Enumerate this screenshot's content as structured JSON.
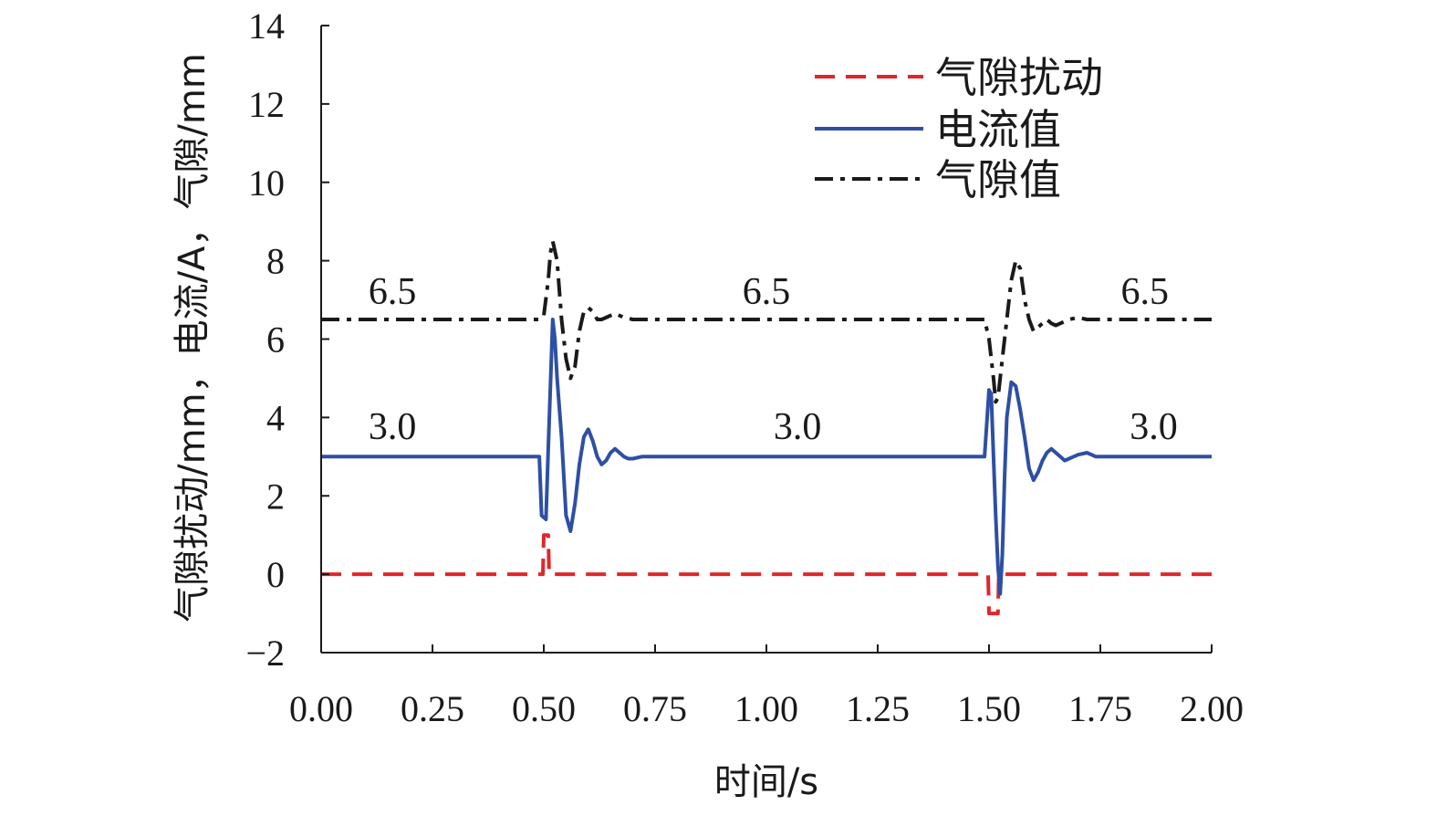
{
  "chart_data": {
    "type": "line",
    "title": "",
    "xlabel": "时间/s",
    "ylabel": "气隙扰动/mm，电流/A，气隙/mm",
    "xlim": [
      0,
      2
    ],
    "ylim": [
      -2,
      14
    ],
    "xticks": [
      "0.00",
      "0.25",
      "0.50",
      "0.75",
      "1.00",
      "1.25",
      "1.50",
      "1.75",
      "2.00"
    ],
    "yticks": [
      "−2",
      "0",
      "2",
      "4",
      "6",
      "8",
      "10",
      "12",
      "14"
    ],
    "grid": false,
    "legend_position": "top-right",
    "series": [
      {
        "name": "气隙扰动",
        "style": "dashed",
        "color": "#e0262a",
        "x": [
          0,
          0.498,
          0.5,
          0.51,
          0.512,
          1.498,
          1.5,
          1.52,
          1.522,
          2.0
        ],
        "y": [
          0,
          0,
          1,
          1,
          0,
          0,
          -1,
          -1,
          0,
          0
        ]
      },
      {
        "name": "电流值",
        "style": "solid",
        "color": "#2e4fa3",
        "x": [
          0,
          0.49,
          0.495,
          0.505,
          0.51,
          0.52,
          0.525,
          0.53,
          0.54,
          0.55,
          0.56,
          0.57,
          0.58,
          0.59,
          0.6,
          0.61,
          0.62,
          0.63,
          0.64,
          0.65,
          0.66,
          0.67,
          0.68,
          0.69,
          0.7,
          0.72,
          0.74,
          2.0
        ],
        "y": [
          3.0,
          3.0,
          1.5,
          1.4,
          3.2,
          6.5,
          6.0,
          5.0,
          3.5,
          1.5,
          1.1,
          1.8,
          2.8,
          3.5,
          3.7,
          3.4,
          3.0,
          2.8,
          2.9,
          3.1,
          3.2,
          3.1,
          3.0,
          2.95,
          2.95,
          3.0,
          3.0,
          3.0
        ]
      },
      {
        "name": "气隙值",
        "style": "dashdot",
        "color": "#1a1a1a",
        "x": [
          0,
          0.49,
          0.5,
          0.51,
          0.515,
          0.52,
          0.53,
          0.54,
          0.55,
          0.56,
          0.57,
          0.58,
          0.59,
          0.6,
          0.61,
          0.62,
          0.63,
          0.64,
          0.65,
          0.66,
          0.67,
          0.68,
          0.7,
          0.72,
          0.74,
          2.0
        ],
        "y": [
          6.5,
          6.5,
          6.6,
          7.5,
          8.2,
          8.5,
          8.0,
          6.5,
          5.5,
          5.0,
          5.3,
          6.2,
          6.7,
          6.8,
          6.7,
          6.5,
          6.5,
          6.55,
          6.6,
          6.65,
          6.6,
          6.55,
          6.5,
          6.5,
          6.5,
          6.5
        ]
      }
    ],
    "annotations": [
      {
        "text": "6.5",
        "x": 0.16,
        "y": 6.9
      },
      {
        "text": "6.5",
        "x": 1.0,
        "y": 6.9
      },
      {
        "text": "6.5",
        "x": 1.85,
        "y": 6.9
      },
      {
        "text": "3.0",
        "x": 0.16,
        "y": 3.45
      },
      {
        "text": "3.0",
        "x": 1.07,
        "y": 3.45
      },
      {
        "text": "3.0",
        "x": 1.87,
        "y": 3.45
      }
    ],
    "second_event": {
      "current": {
        "x": [
          1.49,
          1.5,
          1.505,
          1.51,
          1.515,
          1.52,
          1.525,
          1.53,
          1.535,
          1.54,
          1.55,
          1.56,
          1.57,
          1.58,
          1.59,
          1.6,
          1.61,
          1.62,
          1.63,
          1.64,
          1.65,
          1.66,
          1.67,
          1.68,
          1.69,
          1.7,
          1.72,
          1.74
        ],
        "y": [
          3.0,
          4.7,
          4.6,
          3.0,
          1.5,
          0.2,
          -0.5,
          0.5,
          2.5,
          4.0,
          4.9,
          4.8,
          4.2,
          3.5,
          2.7,
          2.4,
          2.6,
          2.9,
          3.1,
          3.2,
          3.1,
          3.0,
          2.9,
          2.95,
          3.0,
          3.05,
          3.1,
          3.0
        ]
      },
      "gap": {
        "x": [
          1.49,
          1.5,
          1.51,
          1.515,
          1.52,
          1.53,
          1.54,
          1.55,
          1.56,
          1.57,
          1.58,
          1.59,
          1.6,
          1.61,
          1.62,
          1.63,
          1.64,
          1.65,
          1.66,
          1.67,
          1.68,
          1.7,
          1.72,
          1.74
        ],
        "y": [
          6.5,
          6.0,
          5.0,
          4.4,
          4.5,
          5.5,
          6.5,
          7.5,
          8.0,
          7.8,
          7.0,
          6.5,
          6.2,
          6.3,
          6.4,
          6.5,
          6.4,
          6.35,
          6.4,
          6.45,
          6.5,
          6.55,
          6.5,
          6.5
        ]
      }
    }
  }
}
